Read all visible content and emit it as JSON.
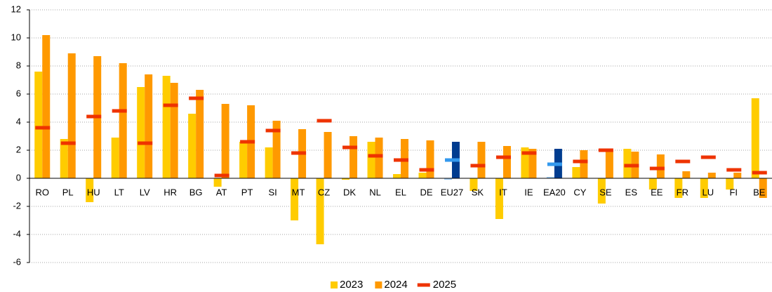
{
  "chart_data": {
    "type": "bar",
    "categories": [
      "RO",
      "PL",
      "HU",
      "LT",
      "LV",
      "HR",
      "BG",
      "AT",
      "PT",
      "SI",
      "MT",
      "CZ",
      "DK",
      "NL",
      "EL",
      "DE",
      "EU27",
      "SK",
      "IT",
      "IE",
      "EA20",
      "CY",
      "SE",
      "ES",
      "EE",
      "FR",
      "LU",
      "FI",
      "BE"
    ],
    "highlight": [
      "EU27",
      "EA20"
    ],
    "series": [
      {
        "name": "2023",
        "color": "#ffcc00",
        "highlight_color": "#9cc9f2",
        "values": [
          7.6,
          2.8,
          -1.7,
          2.9,
          6.5,
          7.3,
          4.6,
          -0.6,
          2.6,
          2.2,
          -3.0,
          -4.7,
          -0.1,
          2.6,
          0.3,
          0.4,
          -0.1,
          -0.9,
          -2.9,
          2.2,
          0.1,
          0.8,
          -1.8,
          2.1,
          -0.8,
          -1.4,
          -1.4,
          -0.8,
          5.7
        ]
      },
      {
        "name": "2024",
        "color": "#ff9900",
        "highlight_color": "#003c8f",
        "values": [
          10.2,
          8.9,
          8.7,
          8.2,
          7.4,
          6.8,
          6.3,
          5.3,
          5.2,
          4.1,
          3.5,
          3.3,
          3.0,
          2.9,
          2.8,
          2.7,
          2.6,
          2.6,
          2.3,
          2.1,
          2.1,
          2.0,
          2.0,
          1.9,
          1.7,
          0.5,
          0.4,
          0.4,
          -1.4
        ]
      },
      {
        "name": "2025",
        "color": "#ee3300",
        "highlight_color": "#3399ee",
        "style": "dash",
        "values": [
          3.6,
          2.5,
          4.4,
          4.8,
          2.5,
          5.2,
          5.7,
          0.2,
          2.6,
          3.4,
          1.8,
          4.1,
          2.2,
          1.6,
          1.3,
          0.6,
          1.3,
          0.9,
          1.5,
          1.8,
          1.0,
          1.2,
          2.0,
          0.9,
          0.7,
          1.2,
          1.5,
          0.6,
          0.4
        ]
      }
    ],
    "ylim": [
      -6,
      12
    ],
    "yticks": [
      -6,
      -4,
      -2,
      0,
      2,
      4,
      6,
      8,
      10,
      12
    ],
    "grid": true,
    "legend": "bottom"
  }
}
